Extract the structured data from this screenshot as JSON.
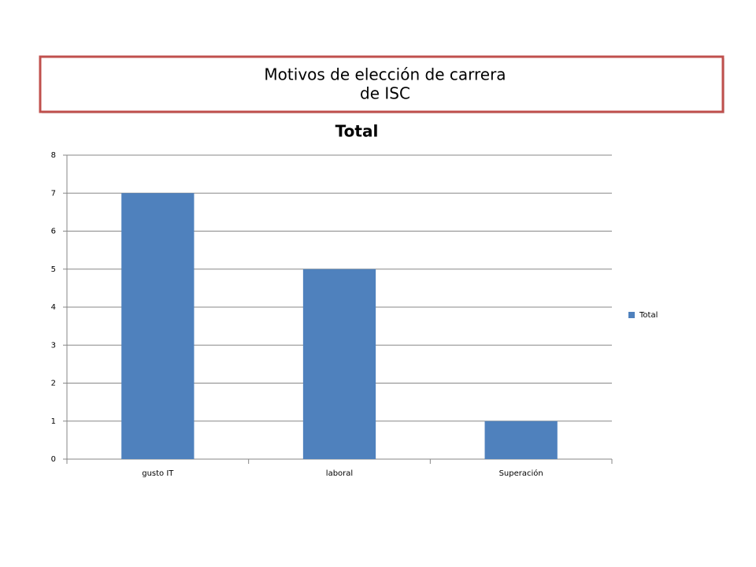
{
  "slide_title": [
    "Motivos de elección de carrera",
    "de ISC"
  ],
  "chart_data": {
    "type": "bar",
    "title": "Total",
    "categories": [
      "gusto IT",
      "laboral",
      "Superación"
    ],
    "series": [
      {
        "name": "Total",
        "color": "#4f81bd",
        "values": [
          7,
          5,
          1
        ]
      }
    ],
    "ylim": [
      0,
      8
    ],
    "yticks": [
      0,
      1,
      2,
      3,
      4,
      5,
      6,
      7,
      8
    ],
    "grid": true,
    "legend": "right"
  }
}
